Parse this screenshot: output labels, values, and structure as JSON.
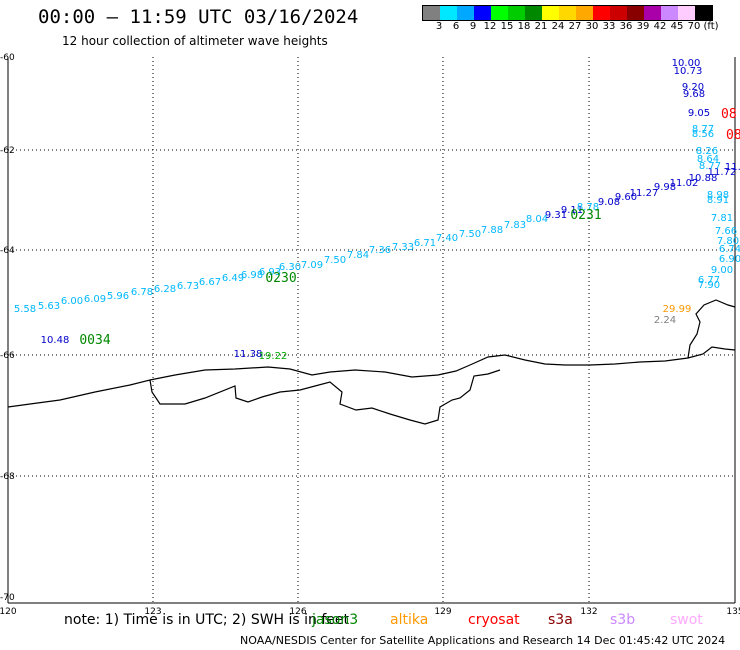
{
  "header": {
    "title": "00:00 – 11:59 UTC 03/16/2024",
    "subtitle": "12 hour collection of altimeter wave heights"
  },
  "colorbar": {
    "colors": [
      "#808080",
      "#00e8ff",
      "#00a8ff",
      "#0000ff",
      "#00ff00",
      "#00cc00",
      "#008800",
      "#ffff00",
      "#ffd800",
      "#ffa800",
      "#ff0000",
      "#cc0000",
      "#880000",
      "#aa00aa",
      "#cc88ff",
      "#ffccff",
      "#000000"
    ],
    "labels": [
      "3",
      "6",
      "9",
      "12",
      "15",
      "18",
      "21",
      "24",
      "27",
      "30",
      "33",
      "36",
      "39",
      "42",
      "45",
      "70",
      "(ft)"
    ]
  },
  "axes": {
    "lon_ticks": [
      "120",
      "123",
      "126",
      "129",
      "132",
      "135"
    ],
    "lat_ticks": [
      "-60",
      "-62",
      "-64",
      "-66",
      "-68",
      "-70"
    ]
  },
  "tracks": [
    {
      "id": "0034",
      "color": "#008800"
    },
    {
      "id": "0230",
      "color": "#008800"
    },
    {
      "id": "0231",
      "color": "#008800"
    }
  ],
  "edge_labels": [
    {
      "text": "08",
      "color": "#ff0000"
    },
    {
      "text": "08",
      "color": "#ff0000"
    }
  ],
  "wave_values": [
    {
      "text": "5.58",
      "color": "#00b8ff"
    },
    {
      "text": "5.63",
      "color": "#00b8ff"
    },
    {
      "text": "6.00",
      "color": "#00b8ff"
    },
    {
      "text": "6.09",
      "color": "#00b8ff"
    },
    {
      "text": "5.96",
      "color": "#00b8ff"
    },
    {
      "text": "6.78",
      "color": "#00b8ff"
    },
    {
      "text": "6.28",
      "color": "#00b8ff"
    },
    {
      "text": "6.73",
      "color": "#00b8ff"
    },
    {
      "text": "6.67",
      "color": "#00b8ff"
    },
    {
      "text": "6.49",
      "color": "#00b8ff"
    },
    {
      "text": "6.98",
      "color": "#00b8ff"
    },
    {
      "text": "6.93",
      "color": "#00b8ff"
    },
    {
      "text": "6.30",
      "color": "#00b8ff"
    },
    {
      "text": "7.09",
      "color": "#00b8ff"
    },
    {
      "text": "7.50",
      "color": "#00b8ff"
    },
    {
      "text": "7.84",
      "color": "#00b8ff"
    },
    {
      "text": "7.36",
      "color": "#00b8ff"
    },
    {
      "text": "7.33",
      "color": "#00b8ff"
    },
    {
      "text": "6.71",
      "color": "#00b8ff"
    },
    {
      "text": "7.40",
      "color": "#00b8ff"
    },
    {
      "text": "7.50",
      "color": "#00b8ff"
    },
    {
      "text": "7.88",
      "color": "#00b8ff"
    },
    {
      "text": "7.83",
      "color": "#00b8ff"
    },
    {
      "text": "8.04",
      "color": "#00b8ff"
    },
    {
      "text": "9.31",
      "color": "#0000cc"
    },
    {
      "text": "9.11",
      "color": "#0000cc"
    },
    {
      "text": "8.78",
      "color": "#00b8ff"
    },
    {
      "text": "9.08",
      "color": "#0000cc"
    },
    {
      "text": "9.60",
      "color": "#0000cc"
    },
    {
      "text": "11.27",
      "color": "#0000cc"
    },
    {
      "text": "9.98",
      "color": "#0000cc"
    },
    {
      "text": "11.02",
      "color": "#0000cc"
    },
    {
      "text": "10.88",
      "color": "#0000cc"
    },
    {
      "text": "11.72",
      "color": "#0000cc"
    },
    {
      "text": "11.2",
      "color": "#0000cc"
    },
    {
      "text": "10.00",
      "color": "#0000cc"
    },
    {
      "text": "10.73",
      "color": "#0000cc"
    },
    {
      "text": "9.20",
      "color": "#0000cc"
    },
    {
      "text": "9.68",
      "color": "#0000cc"
    },
    {
      "text": "9.05",
      "color": "#0000cc"
    },
    {
      "text": "8.77",
      "color": "#00b8ff"
    },
    {
      "text": "8.56",
      "color": "#00b8ff"
    },
    {
      "text": "8.26",
      "color": "#00b8ff"
    },
    {
      "text": "8.64",
      "color": "#00b8ff"
    },
    {
      "text": "8.77",
      "color": "#00b8ff"
    },
    {
      "text": "8.98",
      "color": "#00b8ff"
    },
    {
      "text": "8.91",
      "color": "#00b8ff"
    },
    {
      "text": "7.81",
      "color": "#00b8ff"
    },
    {
      "text": "7.66",
      "color": "#00b8ff"
    },
    {
      "text": "7.80",
      "color": "#00b8ff"
    },
    {
      "text": "6.74",
      "color": "#00b8ff"
    },
    {
      "text": "6.90",
      "color": "#00b8ff"
    },
    {
      "text": "9.00",
      "color": "#00b8ff"
    },
    {
      "text": "6.77",
      "color": "#00b8ff"
    },
    {
      "text": "7.90",
      "color": "#00b8ff"
    },
    {
      "text": "10.48",
      "color": "#0000cc"
    },
    {
      "text": "11.38",
      "color": "#0000cc"
    },
    {
      "text": "19.22",
      "color": "#00aa00"
    },
    {
      "text": "29.99",
      "color": "#ff9900"
    },
    {
      "text": "2.24",
      "color": "#808080"
    }
  ],
  "footer": {
    "note": "note:  1) Time is in UTC;  2) SWH is in feet",
    "credit": "NOAA/NESDIS Center for Satellite Applications and Research    14 Dec 01:45:42 UTC 2024",
    "satellites": [
      {
        "name": "jason3",
        "color": "#008800"
      },
      {
        "name": "altika",
        "color": "#ff9900"
      },
      {
        "name": "cryosat",
        "color": "#ff0000"
      },
      {
        "name": "s3a",
        "color": "#880000"
      },
      {
        "name": "s3b",
        "color": "#cc88ff"
      },
      {
        "name": "swot",
        "color": "#ffaaff"
      }
    ]
  }
}
